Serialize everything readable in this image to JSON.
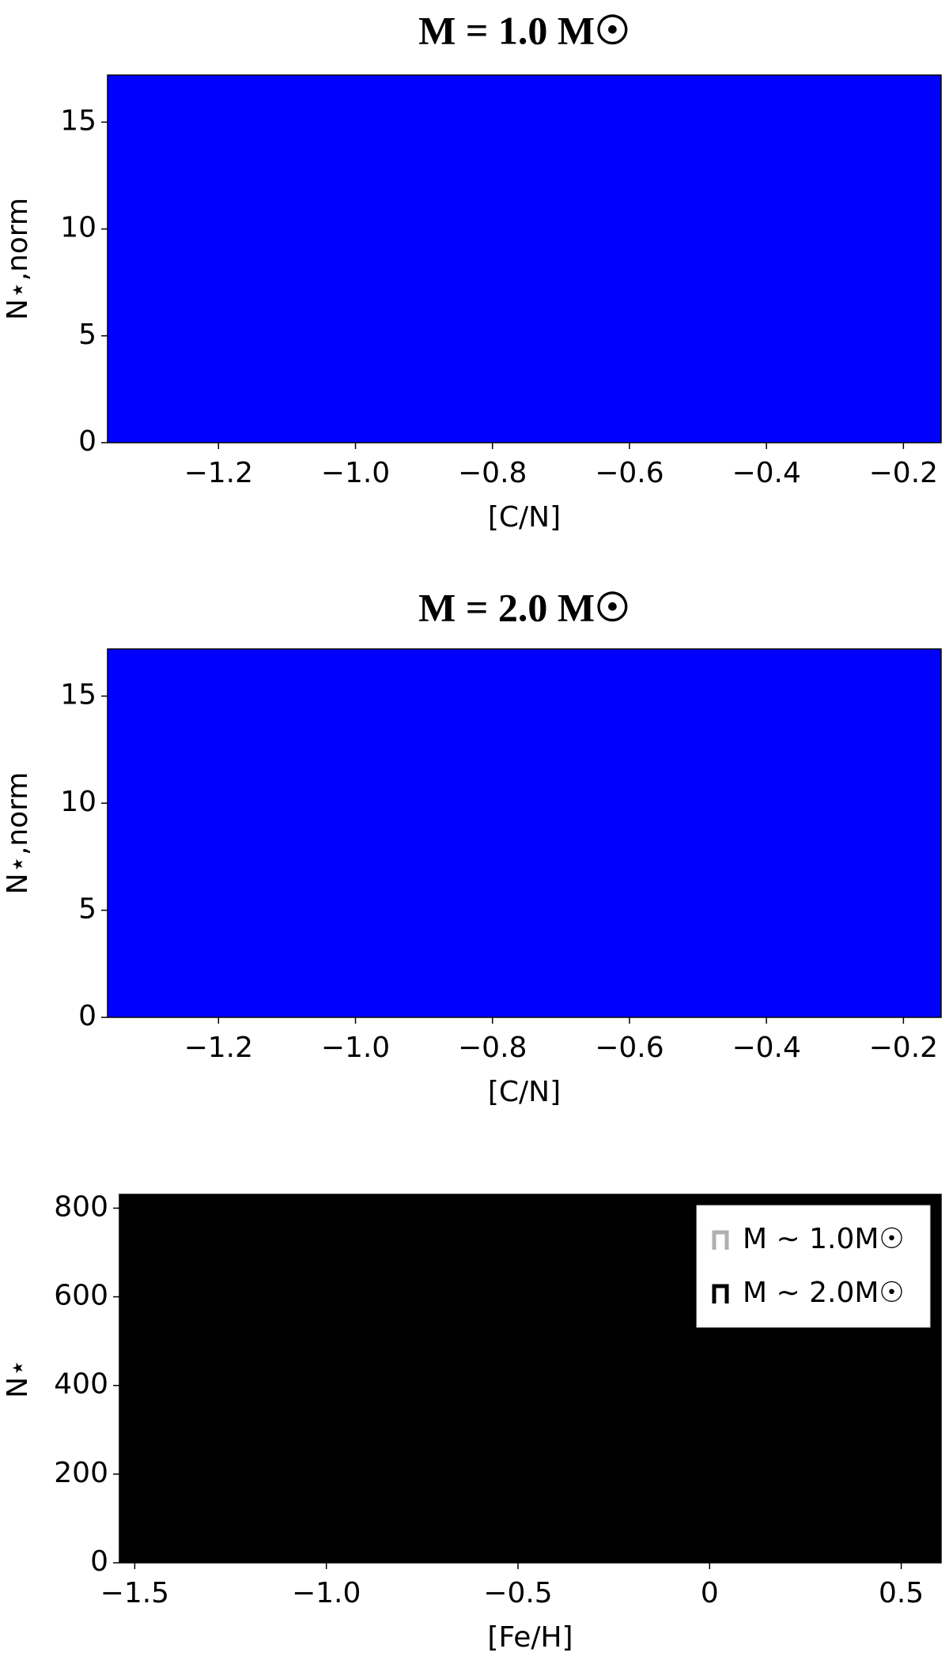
{
  "chart_data": [
    {
      "type": "area",
      "title": "M = 1.0 M☉",
      "xlabel": "[C/N]",
      "ylabel": "N⋆,norm",
      "xlim": [
        -1.362,
        -0.145
      ],
      "ylim": [
        0,
        17.2
      ],
      "xticks": [
        {
          "value": -1.2,
          "label": "−1.2"
        },
        {
          "value": -1.0,
          "label": "−1.0"
        },
        {
          "value": -0.8,
          "label": "−0.8"
        },
        {
          "value": -0.6,
          "label": "−0.6"
        },
        {
          "value": -0.4,
          "label": "−0.4"
        },
        {
          "value": -0.2,
          "label": "−0.2"
        }
      ],
      "yticks": [
        0,
        5,
        10,
        15
      ],
      "series": [
        {
          "color": "#0000ff",
          "x": [
            -1.362,
            -0.145
          ],
          "values": [
            17.2,
            17.2
          ]
        }
      ]
    },
    {
      "type": "area",
      "title": "M = 2.0 M☉",
      "xlabel": "[C/N]",
      "ylabel": "N⋆,norm",
      "xlim": [
        -1.362,
        -0.145
      ],
      "ylim": [
        0,
        17.2
      ],
      "xticks": [
        {
          "value": -1.2,
          "label": "−1.2"
        },
        {
          "value": -1.0,
          "label": "−1.0"
        },
        {
          "value": -0.8,
          "label": "−0.8"
        },
        {
          "value": -0.6,
          "label": "−0.6"
        },
        {
          "value": -0.4,
          "label": "−0.4"
        },
        {
          "value": -0.2,
          "label": "−0.2"
        }
      ],
      "yticks": [
        0,
        5,
        10,
        15
      ],
      "series": [
        {
          "color": "#0000ff",
          "x": [
            -1.362,
            -0.145
          ],
          "values": [
            17.2,
            17.2
          ]
        }
      ]
    },
    {
      "type": "area",
      "xlabel": "[Fe/H]",
      "ylabel": "N⋆",
      "xlim": [
        -1.54,
        0.604
      ],
      "ylim": [
        0,
        831
      ],
      "xticks": [
        {
          "value": -1.5,
          "label": "−1.5"
        },
        {
          "value": -1.0,
          "label": "−1.0"
        },
        {
          "value": -0.5,
          "label": "−0.5"
        },
        0,
        0.5
      ],
      "yticks": [
        0,
        200,
        400,
        600,
        800
      ],
      "legend": "upper right",
      "series": [
        {
          "name": "M ∼ 1.0M☉",
          "color": "#b0b0b0",
          "x": [
            -1.54,
            0.604
          ],
          "values": [
            831,
            831
          ]
        },
        {
          "name": "M ∼ 2.0M☉",
          "color": "#000000",
          "x": [
            -1.54,
            0.604
          ],
          "values": [
            831,
            831
          ]
        }
      ]
    }
  ]
}
